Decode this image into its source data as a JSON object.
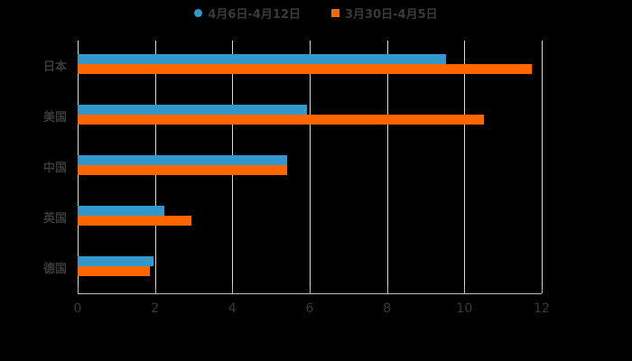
{
  "colors": {
    "series1": "#3399cc",
    "series2": "#ff6600",
    "background": "#000000"
  },
  "legend": [
    {
      "label": "4月6日-4月12日",
      "marker": "circle",
      "color": "#3399cc"
    },
    {
      "label": "3月30日-4月5日",
      "marker": "square",
      "color": "#ff6600"
    }
  ],
  "axis": {
    "x_ticks": [
      "0",
      "2",
      "4",
      "6",
      "8",
      "10",
      "12"
    ]
  },
  "categories": [
    "日本",
    "美国",
    "中国",
    "英国",
    "德国"
  ],
  "chart_data": {
    "type": "bar",
    "orientation": "horizontal",
    "title": "",
    "xlabel": "",
    "ylabel": "",
    "xlim": [
      0,
      12
    ],
    "grid": true,
    "legend_position": "top",
    "categories": [
      "日本",
      "美国",
      "中国",
      "英国",
      "德国"
    ],
    "series": [
      {
        "name": "4月6日-4月12日",
        "color": "#3399cc",
        "values": [
          9.53,
          5.94,
          5.42,
          2.24,
          1.96
        ]
      },
      {
        "name": "3月30日-4月5日",
        "color": "#ff6600",
        "values": [
          11.75,
          10.5,
          5.42,
          2.95,
          1.87
        ]
      }
    ]
  }
}
